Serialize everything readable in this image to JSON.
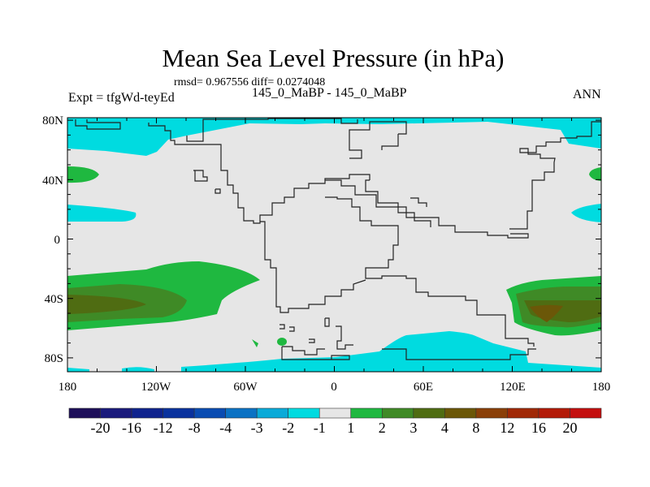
{
  "title": "Mean Sea Level Pressure (in hPa)",
  "stats": "rmsd= 0.967556 diff= 0.0274048",
  "left_label": "Expt = tfgWd-teyEd",
  "center_label": "145_0_MaBP - 145_0_MaBP",
  "right_label": "ANN",
  "chart_data": {
    "type": "map-contour",
    "title": "Mean Sea Level Pressure (in hPa)",
    "variable": "difference in mean sea level pressure",
    "x_ticks": [
      "180",
      "120W",
      "60W",
      "0",
      "60E",
      "120E",
      "180"
    ],
    "y_ticks": [
      "80N",
      "40N",
      "0",
      "40S",
      "80S"
    ],
    "xlim": [
      -180,
      180
    ],
    "colorbar": {
      "levels": [
        "-20",
        "-16",
        "-12",
        "-8",
        "-4",
        "-3",
        "-2",
        "-1",
        "1",
        "2",
        "3",
        "4",
        "8",
        "12",
        "16",
        "20"
      ],
      "colors": [
        "#1e0f5a",
        "#1a1a7c",
        "#0f238e",
        "#0a329e",
        "#0a4cb2",
        "#0b72c4",
        "#0aaad8",
        "#00dbe0",
        "#e6e6e6",
        "#1fb840",
        "#3f8a26",
        "#4f6c12",
        "#6b5708",
        "#8a3f08",
        "#a02806",
        "#b31a08",
        "#c40f0f"
      ]
    },
    "background_level_range": [
      -1,
      1
    ],
    "features": [
      {
        "region": "Arctic / high northern latitudes",
        "range": [
          -2,
          -1
        ]
      },
      {
        "region": "Southern Ocean near 40S, central/eastern Pacific (180 to ~90W)",
        "range": [
          1,
          4
        ]
      },
      {
        "region": "Southern Ocean near 40S, 110E to 180",
        "range": [
          1,
          8
        ]
      },
      {
        "region": "~40N near dateline",
        "range": [
          1,
          2
        ]
      },
      {
        "region": "~20N near dateline",
        "range": [
          -2,
          -1
        ]
      },
      {
        "region": "Antarctic margin 0 to 120E",
        "range": [
          -2,
          -1
        ]
      }
    ]
  }
}
